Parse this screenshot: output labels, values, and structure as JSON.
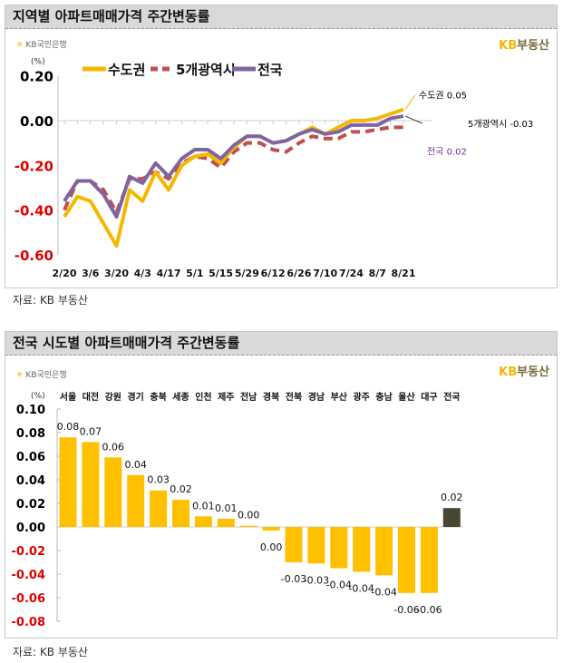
{
  "panel1": {
    "title": "지역별 아파트매매가격 주간변동률",
    "logo_left": "KB국민은행",
    "logo_right_kb": "KB",
    "logo_right_text": "부동산",
    "source": "자료: KB 부동산"
  },
  "panel2": {
    "title": "전국 시도별 아파트매매가격 주간변동률",
    "logo_left": "KB국민은행",
    "logo_right_kb": "KB",
    "logo_right_text": "부동산",
    "source": "자료: KB 부동산"
  },
  "chart_data": [
    {
      "type": "line",
      "ylabel": "(%)",
      "ylim": [
        -0.6,
        0.2
      ],
      "yticks": [
        "0.20",
        "0.00",
        "-0.20",
        "-0.40",
        "-0.60"
      ],
      "ytick_values": [
        0.2,
        0.0,
        -0.2,
        -0.4,
        -0.6
      ],
      "negative_tick_color": "#e00000",
      "x": [
        "2/20",
        "2/27",
        "3/6",
        "3/13",
        "3/20",
        "3/27",
        "4/3",
        "4/10",
        "4/17",
        "4/24",
        "5/1",
        "5/8",
        "5/15",
        "5/22",
        "5/29",
        "6/5",
        "6/12",
        "6/19",
        "6/26",
        "7/3",
        "7/10",
        "7/17",
        "7/24",
        "7/31",
        "8/7",
        "8/14",
        "8/21"
      ],
      "xtick_labels": [
        "2/20",
        "3/6",
        "3/20",
        "4/3",
        "4/17",
        "5/1",
        "5/15",
        "5/29",
        "6/12",
        "6/26",
        "7/10",
        "7/24",
        "8/7",
        "8/21"
      ],
      "legend_position": "top",
      "series": [
        {
          "name": "수도권",
          "color": "#f5b800",
          "style": "solid",
          "values": [
            -0.43,
            -0.34,
            -0.36,
            -0.46,
            -0.56,
            -0.31,
            -0.36,
            -0.23,
            -0.31,
            -0.2,
            -0.16,
            -0.15,
            -0.19,
            -0.12,
            -0.07,
            -0.07,
            -0.1,
            -0.09,
            -0.06,
            -0.03,
            -0.06,
            -0.03,
            0.0,
            0.0,
            0.01,
            0.03,
            0.05
          ],
          "end_label": "수도권 0.05",
          "end_label_color": "#000000"
        },
        {
          "name": "5개광역시",
          "color": "#c0504d",
          "style": "dashed",
          "values": [
            -0.4,
            -0.27,
            -0.27,
            -0.31,
            -0.41,
            -0.26,
            -0.26,
            -0.23,
            -0.26,
            -0.19,
            -0.16,
            -0.17,
            -0.21,
            -0.14,
            -0.1,
            -0.1,
            -0.13,
            -0.14,
            -0.1,
            -0.07,
            -0.08,
            -0.08,
            -0.05,
            -0.05,
            -0.04,
            -0.03,
            -0.03
          ],
          "end_label": "5개광역시 -0.03",
          "end_label_color": "#000000"
        },
        {
          "name": "전국",
          "color": "#8064a2",
          "style": "solid",
          "values": [
            -0.36,
            -0.27,
            -0.27,
            -0.33,
            -0.43,
            -0.25,
            -0.28,
            -0.19,
            -0.25,
            -0.17,
            -0.13,
            -0.13,
            -0.17,
            -0.11,
            -0.07,
            -0.07,
            -0.1,
            -0.09,
            -0.06,
            -0.04,
            -0.06,
            -0.05,
            -0.02,
            -0.02,
            -0.02,
            0.01,
            0.02
          ],
          "end_label": "전국 0.02",
          "end_label_color": "#7030a0"
        }
      ]
    },
    {
      "type": "bar",
      "ylabel": "(%)",
      "ylim": [
        -0.08,
        0.1
      ],
      "yticks": [
        "0.10",
        "0.08",
        "0.06",
        "0.04",
        "0.02",
        "0.00",
        "-0.02",
        "-0.04",
        "-0.06",
        "-0.08"
      ],
      "ytick_values": [
        0.1,
        0.08,
        0.06,
        0.04,
        0.02,
        0.0,
        -0.02,
        -0.04,
        -0.06,
        -0.08
      ],
      "negative_tick_color": "#e00000",
      "categories": [
        "서울",
        "대전",
        "강원",
        "경기",
        "충북",
        "세종",
        "인천",
        "제주",
        "전남",
        "경북",
        "전북",
        "경남",
        "부산",
        "광주",
        "충남",
        "울산",
        "대구",
        "전국"
      ],
      "values": [
        0.076,
        0.072,
        0.059,
        0.044,
        0.031,
        0.023,
        0.009,
        0.007,
        0.001,
        -0.003,
        -0.03,
        -0.031,
        -0.035,
        -0.038,
        -0.041,
        -0.056,
        -0.056,
        0.016
      ],
      "data_labels": [
        "0.08",
        "0.07",
        "0.06",
        "0.04",
        "0.03",
        "0.02",
        "0.01",
        "0.01",
        "0.00",
        "0.00",
        "-0.03",
        "-0.03",
        "-0.04",
        "-0.04",
        "-0.04",
        "-0.06",
        "-0.06",
        "0.02"
      ],
      "bar_color": "#ffc000",
      "highlight_color": "#4a4530",
      "highlight_category": "전국"
    }
  ]
}
